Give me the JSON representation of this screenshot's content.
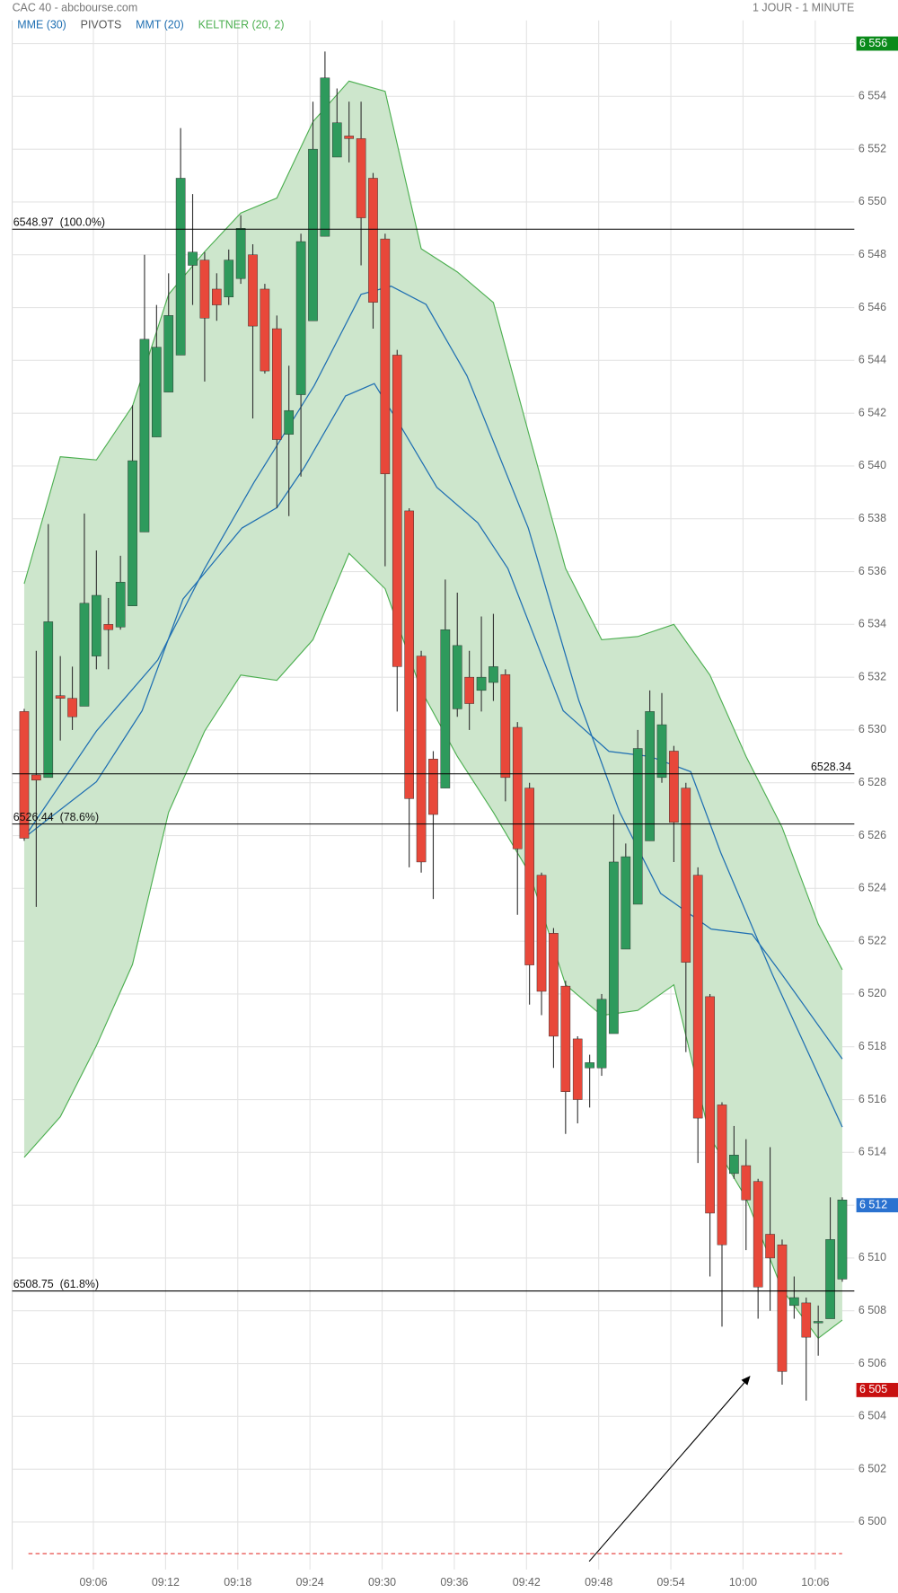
{
  "chart_data": {
    "type": "candlestick",
    "title": "CAC 40 - abcbourse.com",
    "subtitle": "1 JOUR - 1 MINUTE",
    "pivots_label": "PIVOTS",
    "pivots_color": "#555555",
    "xlim": [
      -1,
      69
    ],
    "ylim": [
      6498.2,
      6556.3
    ],
    "xticks": [
      {
        "value": 5.75,
        "label": "09:06"
      },
      {
        "value": 11.75,
        "label": "09:12"
      },
      {
        "value": 17.75,
        "label": "09:18"
      },
      {
        "value": 23.75,
        "label": "09:24"
      },
      {
        "value": 29.75,
        "label": "09:30"
      },
      {
        "value": 35.75,
        "label": "09:36"
      },
      {
        "value": 41.75,
        "label": "09:42"
      },
      {
        "value": 47.75,
        "label": "09:48"
      },
      {
        "value": 53.75,
        "label": "09:54"
      },
      {
        "value": 59.75,
        "label": "10:00"
      },
      {
        "value": 65.75,
        "label": "10:06"
      }
    ],
    "yticks": [
      {
        "value": 6500,
        "label": "6 500"
      },
      {
        "value": 6502,
        "label": "6 502"
      },
      {
        "value": 6504,
        "label": "6 504"
      },
      {
        "value": 6506,
        "label": "6 506"
      },
      {
        "value": 6508,
        "label": "6 508"
      },
      {
        "value": 6510,
        "label": "6 510"
      },
      {
        "value": 6512,
        "label": "6 512"
      },
      {
        "value": 6514,
        "label": "6 514"
      },
      {
        "value": 6516,
        "label": "6 516"
      },
      {
        "value": 6518,
        "label": "6 518"
      },
      {
        "value": 6520,
        "label": "6 520"
      },
      {
        "value": 6522,
        "label": "6 522"
      },
      {
        "value": 6524,
        "label": "6 524"
      },
      {
        "value": 6526,
        "label": "6 526"
      },
      {
        "value": 6528,
        "label": "6 528"
      },
      {
        "value": 6530,
        "label": "6 530"
      },
      {
        "value": 6532,
        "label": "6 532"
      },
      {
        "value": 6534,
        "label": "6 534"
      },
      {
        "value": 6536,
        "label": "6 536"
      },
      {
        "value": 6538,
        "label": "6 538"
      },
      {
        "value": 6540,
        "label": "6 540"
      },
      {
        "value": 6542,
        "label": "6 542"
      },
      {
        "value": 6544,
        "label": "6 544"
      },
      {
        "value": 6546,
        "label": "6 546"
      },
      {
        "value": 6548,
        "label": "6 548"
      },
      {
        "value": 6550,
        "label": "6 550"
      },
      {
        "value": 6552,
        "label": "6 552"
      },
      {
        "value": 6554,
        "label": "6 554"
      },
      {
        "value": 6556,
        "label": "6 556"
      }
    ],
    "grid": true,
    "up_color": "#2e9a5c",
    "down_color": "#e8483a",
    "x": [
      0,
      1,
      2,
      3,
      4,
      5,
      6,
      7,
      8,
      9,
      10,
      11,
      12,
      13,
      14,
      15,
      16,
      17,
      18,
      19,
      20,
      21,
      22,
      23,
      24,
      25,
      26,
      27,
      28,
      29,
      30,
      31,
      32,
      33,
      34,
      35,
      36,
      37,
      38,
      39,
      40,
      41,
      42,
      43,
      44,
      45,
      46,
      47,
      48,
      49,
      50,
      51,
      52,
      53,
      54,
      55,
      56,
      57,
      58,
      59,
      60,
      61,
      62,
      63,
      64,
      65,
      66,
      67,
      68
    ],
    "open": [
      6530.7,
      6528.3,
      6528.2,
      6531.3,
      6531.2,
      6530.9,
      6532.8,
      6534.0,
      6533.9,
      6534.7,
      6537.5,
      6541.1,
      6542.8,
      6544.2,
      6547.6,
      6547.8,
      6546.7,
      6546.4,
      6547.1,
      6548.0,
      6546.7,
      6545.2,
      6541.2,
      6542.7,
      6545.5,
      6548.7,
      6551.7,
      6552.5,
      6552.4,
      6550.9,
      6548.6,
      6544.2,
      6538.3,
      6532.8,
      6528.9,
      6527.8,
      6530.8,
      6532.0,
      6531.5,
      6531.8,
      6532.1,
      6530.1,
      6527.8,
      6524.5,
      6522.3,
      6520.3,
      6518.3,
      6517.2,
      6517.2,
      6518.5,
      6521.7,
      6523.4,
      6525.8,
      6528.2,
      6529.2,
      6527.8,
      6524.5,
      6519.9,
      6515.8,
      6513.2,
      6513.5,
      6512.9,
      6510.9,
      6510.5,
      6508.2,
      6508.3,
      6507.6,
      6507.7,
      6509.2
    ],
    "high": [
      6530.8,
      6533.0,
      6537.8,
      6532.8,
      6532.4,
      6538.2,
      6536.8,
      6535.0,
      6536.6,
      6542.3,
      6548.0,
      6546.1,
      6547.3,
      6552.8,
      6550.3,
      6548.1,
      6547.3,
      6548.2,
      6549.5,
      6548.4,
      6546.9,
      6545.7,
      6543.8,
      6548.8,
      6553.8,
      6555.7,
      6554.3,
      6553.8,
      6553.8,
      6551.1,
      6548.8,
      6544.4,
      6538.4,
      6533.0,
      6529.2,
      6535.7,
      6535.2,
      6533.0,
      6534.3,
      6534.4,
      6532.3,
      6530.3,
      6528.0,
      6524.6,
      6522.5,
      6520.5,
      6518.4,
      6517.7,
      6520.0,
      6526.8,
      6525.7,
      6530.0,
      6531.5,
      6531.4,
      6529.4,
      6528.0,
      6524.8,
      6520.0,
      6515.9,
      6515.0,
      6514.5,
      6513.0,
      6514.2,
      6510.7,
      6509.3,
      6508.5,
      6508.2,
      6512.3,
      6512.3
    ],
    "low": [
      6525.8,
      6523.3,
      6528.2,
      6529.6,
      6530.0,
      6530.9,
      6532.3,
      6532.3,
      6533.8,
      6534.7,
      6537.5,
      6541.1,
      6542.8,
      6544.2,
      6546.1,
      6543.2,
      6545.5,
      6546.1,
      6546.9,
      6541.8,
      6543.5,
      6538.4,
      6538.1,
      6539.6,
      6545.5,
      6548.7,
      6551.7,
      6551.5,
      6547.6,
      6545.2,
      6536.2,
      6530.7,
      6524.8,
      6524.6,
      6523.6,
      6527.8,
      6530.5,
      6530.0,
      6530.7,
      6531.1,
      6527.3,
      6523.0,
      6519.6,
      6519.2,
      6517.2,
      6514.7,
      6515.1,
      6515.7,
      6516.9,
      6518.5,
      6521.7,
      6523.4,
      6525.8,
      6528.0,
      6525.0,
      6517.8,
      6513.6,
      6509.3,
      6507.4,
      6513.0,
      6510.3,
      6507.7,
      6508.0,
      6505.2,
      6507.7,
      6504.6,
      6506.3,
      6507.7,
      6509.1
    ],
    "close": [
      6525.9,
      6528.1,
      6534.1,
      6531.2,
      6530.5,
      6534.8,
      6535.1,
      6533.8,
      6535.6,
      6540.2,
      6544.8,
      6544.5,
      6545.7,
      6550.9,
      6548.1,
      6545.6,
      6546.1,
      6547.8,
      6549.0,
      6545.3,
      6543.6,
      6541.0,
      6542.1,
      6548.5,
      6552.0,
      6554.7,
      6553.0,
      6552.4,
      6549.4,
      6546.2,
      6539.7,
      6532.4,
      6527.4,
      6525.0,
      6526.8,
      6533.8,
      6533.2,
      6531.0,
      6532.0,
      6532.4,
      6528.2,
      6525.5,
      6521.1,
      6520.1,
      6518.4,
      6516.3,
      6516.0,
      6517.4,
      6519.8,
      6525.0,
      6525.2,
      6529.3,
      6530.7,
      6530.2,
      6526.5,
      6521.2,
      6515.3,
      6511.7,
      6510.5,
      6513.9,
      6512.2,
      6508.9,
      6510.0,
      6505.7,
      6508.5,
      6507.0,
      6507.6,
      6510.7,
      6512.2
    ],
    "keltner": {
      "name": "KELTNER (20, 2)",
      "color": "#4caf50",
      "fill": "#cde6cc",
      "x": [
        0,
        3,
        6,
        9,
        12,
        15,
        18,
        21,
        24,
        27,
        30,
        33,
        36,
        39,
        42,
        45,
        48,
        51,
        54,
        57,
        60,
        63,
        66,
        68
      ],
      "upper": [
        6535.54,
        6540.35,
        6540.23,
        6542.27,
        6546.5,
        6548.12,
        6549.58,
        6550.15,
        6553.04,
        6554.58,
        6554.19,
        6548.23,
        6547.35,
        6546.19,
        6541.12,
        6536.12,
        6533.42,
        6533.54,
        6534.0,
        6532.08,
        6529.0,
        6526.31,
        6522.65,
        6520.92
      ],
      "lower": [
        6513.81,
        6515.35,
        6518.04,
        6521.12,
        6526.88,
        6529.96,
        6532.08,
        6531.88,
        6533.42,
        6536.69,
        6535.35,
        6531.5,
        6529.0,
        6526.88,
        6524.58,
        6520.35,
        6519.19,
        6519.38,
        6520.35,
        6514.58,
        6512.27,
        6508.81,
        6506.96,
        6507.65
      ]
    },
    "series": [
      {
        "name": "MME (30)",
        "color": "#1f6fb2",
        "x": [
          0,
          6,
          11.1,
          15,
          19.1,
          24.1,
          28,
          30.5,
          33.4,
          36.8,
          41.9,
          46.1,
          49.5,
          52.9,
          57.1,
          60.5,
          63,
          68
        ],
        "values": [
          6525.92,
          6529.96,
          6532.65,
          6536.12,
          6539.38,
          6543.04,
          6546.5,
          6546.81,
          6546.12,
          6543.42,
          6537.65,
          6531.12,
          6526.88,
          6523.81,
          6522.46,
          6522.27,
          6520.73,
          6517.54
        ]
      },
      {
        "name": "MMT (20)",
        "color": "#1f6fb2",
        "x": [
          0,
          6,
          9.8,
          13.2,
          18.1,
          21,
          23.3,
          26.7,
          29.1,
          31.3,
          34.3,
          37.7,
          40.2,
          44.8,
          48.6,
          52,
          55.4,
          57.9,
          62.2,
          68
        ],
        "values": [
          6525.92,
          6528.04,
          6530.73,
          6534.96,
          6537.65,
          6538.42,
          6539.96,
          6542.65,
          6543.12,
          6541.5,
          6539.19,
          6537.85,
          6536.12,
          6530.73,
          6529.19,
          6529.0,
          6528.42,
          6525.35,
          6520.73,
          6514.96
        ]
      }
    ],
    "levels": [
      {
        "value": 6548.97,
        "label": "6548.97  (100.0%)",
        "side": "left"
      },
      {
        "value": 6528.34,
        "label": "6528.34",
        "side": "right"
      },
      {
        "value": 6526.44,
        "label": "6526.44  (78.6%)",
        "side": "left"
      },
      {
        "value": 6508.75,
        "label": "6508.75  (61.8%)",
        "side": "left"
      },
      {
        "value": 6498.8,
        "dashed": true,
        "color": "#e53935"
      }
    ],
    "badges": [
      {
        "value": 6556,
        "label": "6 556",
        "color": "#0a8a1a"
      },
      {
        "value": 6512,
        "label": "6 512",
        "color": "#2a72d0"
      },
      {
        "value": 6505,
        "label": "6 505",
        "color": "#c81010"
      }
    ]
  }
}
